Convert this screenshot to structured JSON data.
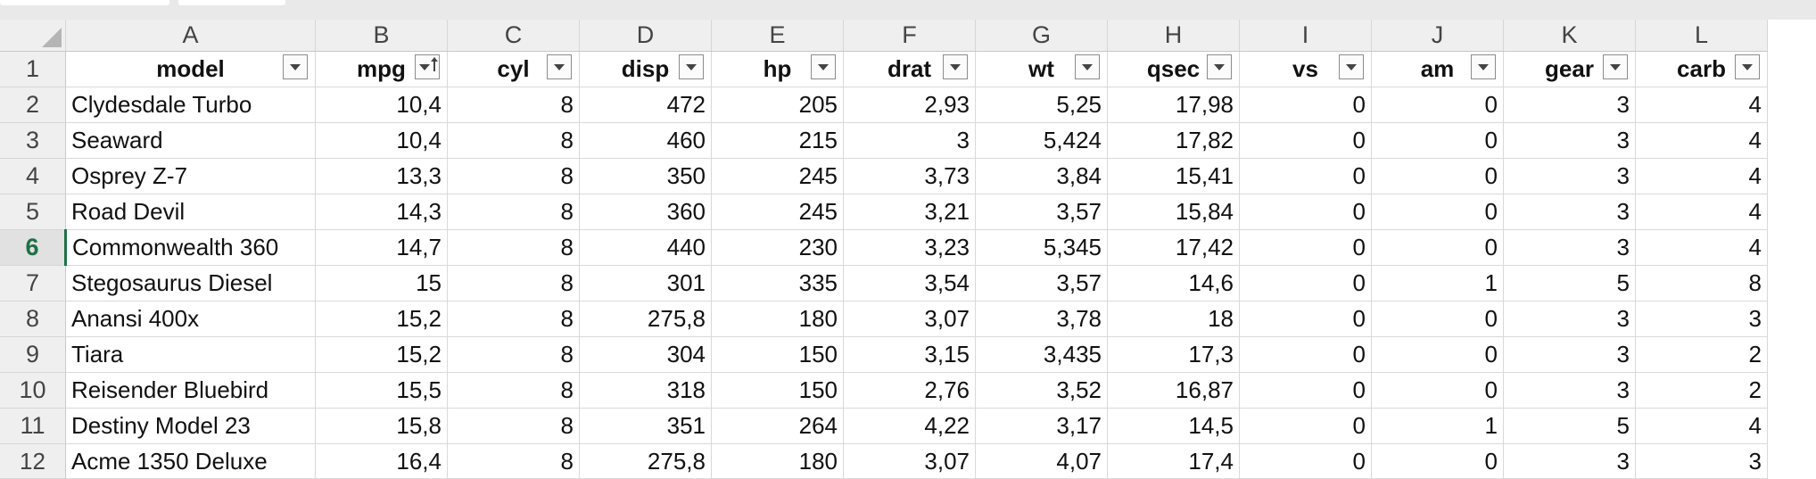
{
  "columns": [
    "A",
    "B",
    "C",
    "D",
    "E",
    "F",
    "G",
    "H",
    "I",
    "J",
    "K",
    "L"
  ],
  "row_numbers": [
    "1",
    "2",
    "3",
    "4",
    "5",
    "6",
    "7",
    "8",
    "9",
    "10",
    "11",
    "12"
  ],
  "active_row": "6",
  "headers": [
    {
      "label": "model",
      "sorted": false
    },
    {
      "label": "mpg",
      "sorted": true
    },
    {
      "label": "cyl",
      "sorted": false
    },
    {
      "label": "disp",
      "sorted": false
    },
    {
      "label": "hp",
      "sorted": false
    },
    {
      "label": "drat",
      "sorted": false
    },
    {
      "label": "wt",
      "sorted": false
    },
    {
      "label": "qsec",
      "sorted": false
    },
    {
      "label": "vs",
      "sorted": false
    },
    {
      "label": "am",
      "sorted": false
    },
    {
      "label": "gear",
      "sorted": false
    },
    {
      "label": "carb",
      "sorted": false
    }
  ],
  "rows": [
    [
      "Clydesdale Turbo",
      "10,4",
      "8",
      "472",
      "205",
      "2,93",
      "5,25",
      "17,98",
      "0",
      "0",
      "3",
      "4"
    ],
    [
      "Seaward",
      "10,4",
      "8",
      "460",
      "215",
      "3",
      "5,424",
      "17,82",
      "0",
      "0",
      "3",
      "4"
    ],
    [
      "Osprey Z-7",
      "13,3",
      "8",
      "350",
      "245",
      "3,73",
      "3,84",
      "15,41",
      "0",
      "0",
      "3",
      "4"
    ],
    [
      "Road Devil",
      "14,3",
      "8",
      "360",
      "245",
      "3,21",
      "3,57",
      "15,84",
      "0",
      "0",
      "3",
      "4"
    ],
    [
      "Commonwealth 360",
      "14,7",
      "8",
      "440",
      "230",
      "3,23",
      "5,345",
      "17,42",
      "0",
      "0",
      "3",
      "4"
    ],
    [
      "Stegosaurus Diesel",
      "15",
      "8",
      "301",
      "335",
      "3,54",
      "3,57",
      "14,6",
      "0",
      "1",
      "5",
      "8"
    ],
    [
      "Anansi 400x",
      "15,2",
      "8",
      "275,8",
      "180",
      "3,07",
      "3,78",
      "18",
      "0",
      "0",
      "3",
      "3"
    ],
    [
      "Tiara",
      "15,2",
      "8",
      "304",
      "150",
      "3,15",
      "3,435",
      "17,3",
      "0",
      "0",
      "3",
      "2"
    ],
    [
      "Reisender Bluebird",
      "15,5",
      "8",
      "318",
      "150",
      "2,76",
      "3,52",
      "16,87",
      "0",
      "0",
      "3",
      "2"
    ],
    [
      "Destiny Model 23",
      "15,8",
      "8",
      "351",
      "264",
      "4,22",
      "3,17",
      "14,5",
      "0",
      "1",
      "5",
      "4"
    ],
    [
      "Acme 1350 Deluxe",
      "16,4",
      "8",
      "275,8",
      "180",
      "3,07",
      "4,07",
      "17,4",
      "0",
      "0",
      "3",
      "3"
    ]
  ]
}
